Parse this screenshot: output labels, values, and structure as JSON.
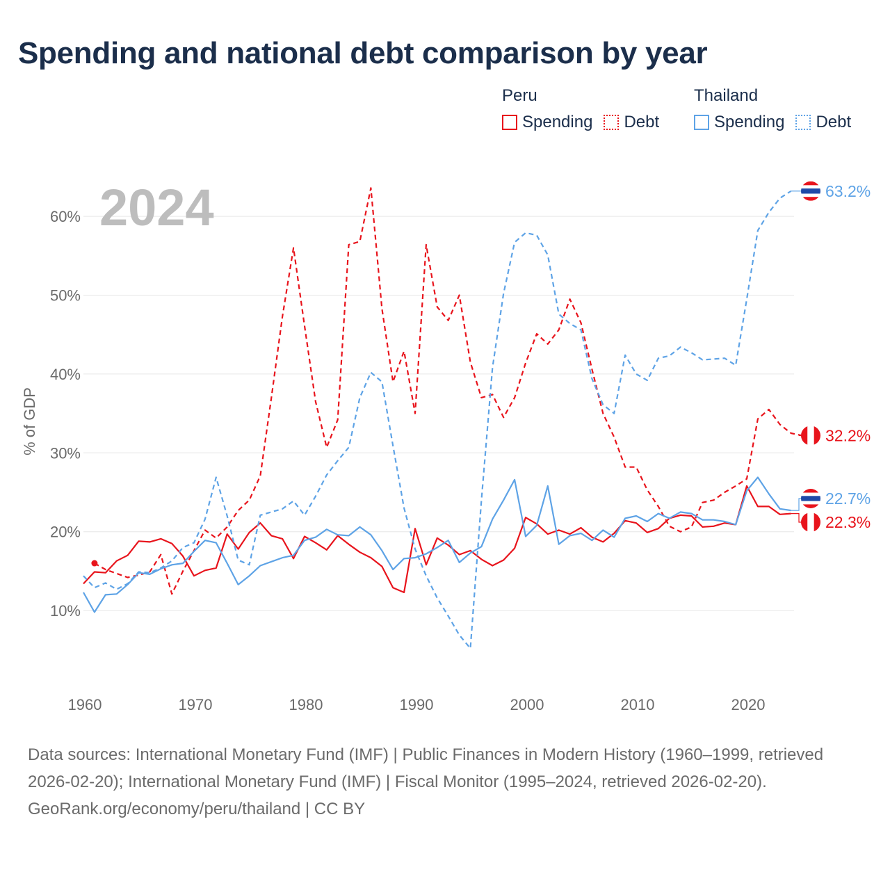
{
  "title": "Spending and national debt comparison by year",
  "year_label": "2024",
  "colors": {
    "peru": "#e8141c",
    "thailand": "#5ea3e6",
    "grid": "#e6e6e6",
    "axis_text": "#6b6b6b",
    "year_text": "#bdbdbd",
    "thai_flag_blue": "#1f4aa8"
  },
  "legend": {
    "peru": {
      "name": "Peru",
      "spending": "Spending",
      "debt": "Debt"
    },
    "thailand": {
      "name": "Thailand",
      "spending": "Spending",
      "debt": "Debt"
    }
  },
  "sources": {
    "line1": "Data sources: International Monetary Fund (IMF) | Public Finances in Modern History (1960–1999, retrieved 2026-02-20); International Monetary Fund (IMF) | Fiscal Monitor (1995–2024, retrieved 2026-02-20).",
    "line2": "GeoRank.org/economy/peru/thailand | CC BY"
  },
  "chart_data": {
    "type": "line",
    "ylabel": "% of GDP",
    "xlabel": "",
    "xlim": [
      1960,
      2024
    ],
    "ylim": [
      0,
      66
    ],
    "x_ticks": [
      1960,
      1970,
      1980,
      1990,
      2000,
      2010,
      2020
    ],
    "y_ticks": [
      10,
      20,
      30,
      40,
      50,
      60
    ],
    "y_tick_labels": [
      "10%",
      "20%",
      "30%",
      "40%",
      "50%",
      "60%"
    ],
    "end_labels": {
      "thailand_debt": "63.2%",
      "peru_debt": "32.2%",
      "thailand_spending": "22.7%",
      "peru_spending": "22.3%"
    },
    "series": [
      {
        "name": "Peru Spending",
        "country": "peru",
        "metric": "Spending",
        "style": "solid",
        "start_year": 1960,
        "values": [
          13.4,
          14.9,
          14.8,
          16.3,
          17.0,
          18.8,
          18.7,
          19.1,
          18.5,
          16.9,
          14.4,
          15.1,
          15.4,
          19.7,
          17.8,
          19.9,
          21.1,
          19.5,
          19.1,
          16.6,
          19.4,
          18.6,
          17.7,
          19.5,
          18.4,
          17.4,
          16.7,
          15.6,
          12.9,
          12.3,
          20.4,
          15.8,
          19.2,
          18.3,
          17.1,
          17.6,
          16.5,
          15.7,
          16.4,
          17.9,
          21.8,
          21.0,
          19.7,
          20.2,
          19.7,
          20.5,
          19.3,
          18.7,
          19.8,
          21.4,
          21.1,
          19.9,
          20.4,
          21.7,
          22.1,
          22.0,
          20.6,
          20.7,
          21.1,
          20.9,
          25.8,
          23.2,
          23.2,
          22.2,
          22.3
        ]
      },
      {
        "name": "Peru Debt",
        "country": "peru",
        "metric": "Debt",
        "style": "dashed",
        "start_year": 1961,
        "values": [
          16.0,
          15.2,
          14.7,
          14.2,
          14.5,
          14.9,
          17.1,
          12.1,
          15.0,
          17.6,
          20.2,
          19.2,
          20.6,
          22.7,
          24.0,
          27.1,
          37.0,
          47.3,
          56.0,
          46.1,
          36.5,
          30.7,
          34.2,
          56.4,
          56.8,
          63.6,
          48.3,
          39.0,
          42.9,
          35.0,
          56.4,
          48.5,
          46.8,
          50.0,
          41.5,
          37.0,
          37.4,
          34.5,
          37.0,
          41.4,
          45.1,
          43.8,
          45.6,
          49.5,
          46.5,
          40.6,
          35.0,
          32.0,
          28.2,
          28.2,
          25.3,
          23.2,
          20.7,
          20.0,
          20.6,
          23.7,
          24.0,
          25.0,
          25.8,
          26.7,
          34.3,
          35.5,
          33.6,
          32.5,
          32.2
        ]
      },
      {
        "name": "Thailand Spending",
        "country": "thailand",
        "metric": "Spending",
        "style": "solid",
        "start_year": 1960,
        "values": [
          12.3,
          9.8,
          12.0,
          12.1,
          13.3,
          14.8,
          14.6,
          15.3,
          15.8,
          16.0,
          17.5,
          18.9,
          18.6,
          16.0,
          13.3,
          14.4,
          15.7,
          16.2,
          16.7,
          17.0,
          18.9,
          19.3,
          20.3,
          19.6,
          19.5,
          20.6,
          19.6,
          17.6,
          15.2,
          16.6,
          16.7,
          17.2,
          18.0,
          18.9,
          16.1,
          17.3,
          18.1,
          21.6,
          24.0,
          26.6,
          19.4,
          20.8,
          25.8,
          18.4,
          19.5,
          19.8,
          18.9,
          20.2,
          19.3,
          21.7,
          22.0,
          21.3,
          22.3,
          21.7,
          22.5,
          22.3,
          21.5,
          21.5,
          21.3,
          20.9,
          25.2,
          26.9,
          24.8,
          22.9,
          22.7
        ]
      },
      {
        "name": "Thailand Debt",
        "country": "thailand",
        "metric": "Debt",
        "style": "dashed",
        "start_year": 1960,
        "values": [
          14.4,
          12.9,
          13.5,
          12.7,
          13.4,
          14.9,
          14.8,
          15.4,
          16.3,
          18.0,
          18.6,
          21.6,
          26.9,
          22.0,
          16.4,
          15.8,
          22.1,
          22.5,
          22.9,
          23.9,
          22.1,
          24.5,
          27.2,
          29.0,
          30.7,
          37.0,
          40.2,
          39.0,
          30.9,
          23.0,
          17.8,
          14.4,
          11.6,
          9.3,
          6.9,
          5.2,
          24.0,
          40.8,
          50.2,
          56.7,
          57.9,
          57.6,
          55.1,
          47.6,
          46.4,
          45.6,
          39.4,
          36.1,
          35.0,
          42.4,
          40.0,
          39.2,
          42.0,
          42.3,
          43.4,
          42.7,
          41.8,
          41.9,
          42.0,
          41.1,
          49.5,
          58.2,
          60.5,
          62.3,
          63.2
        ]
      }
    ]
  }
}
